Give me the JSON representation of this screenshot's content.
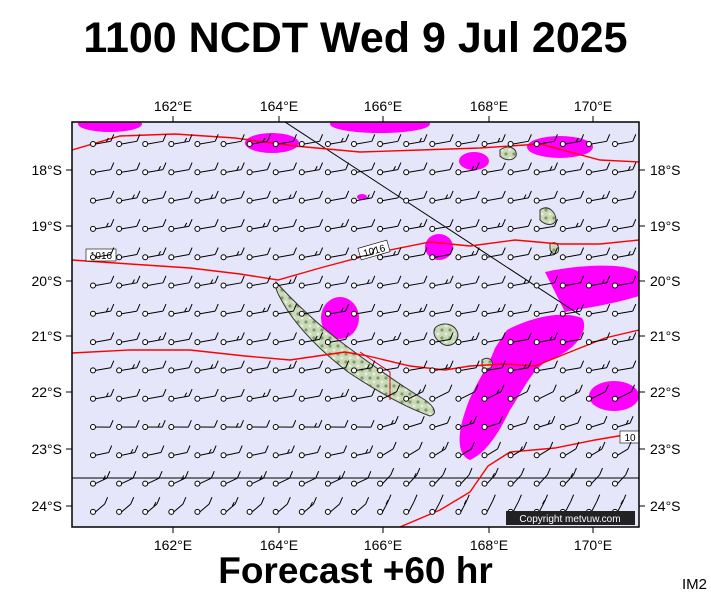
{
  "header": {
    "title": "1100 NCDT Wed 9 Jul 2025"
  },
  "footer": {
    "forecast": "Forecast +60 hr",
    "tag": "IM2"
  },
  "map": {
    "lon_labels": [
      "162°E",
      "164°E",
      "166°E",
      "168°E",
      "170°E"
    ],
    "lat_labels": [
      "18°S",
      "19°S",
      "20°S",
      "21°S",
      "22°S",
      "23°S",
      "24°S"
    ],
    "isobar_labels": [
      "1016",
      "1016",
      "10"
    ],
    "copyright": "Copyright metvuw.com",
    "colors": {
      "ocean": "#e6e6fa",
      "isobar": "#ff0000",
      "precip": "#ff00ff",
      "land": "#b8cfa8"
    }
  }
}
